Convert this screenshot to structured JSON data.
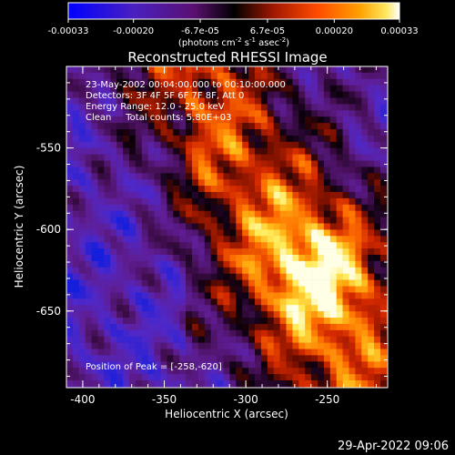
{
  "colorbar": {
    "ticks": [
      "-0.00033",
      "-0.00020",
      "-6.7e-05",
      "6.7e-05",
      "0.00020",
      "0.00033"
    ],
    "units_main": "(photons cm",
    "units_sup1": "-2",
    "units_mid1": " s",
    "units_sup2": "-1",
    "units_mid2": " asec",
    "units_sup3": "-2",
    "units_end": ")"
  },
  "chart_data": {
    "type": "heatmap",
    "title": "Reconstructed RHESSI Image",
    "xlabel": "Heliocentric X (arcsec)",
    "ylabel": "Heliocentric Y (arcsec)",
    "xlim": [
      -410,
      -213
    ],
    "ylim": [
      -697,
      -500
    ],
    "xticks": [
      "-400",
      "-350",
      "-300",
      "-250"
    ],
    "yticks": [
      "-550",
      "-600",
      "-650"
    ],
    "color_range": [
      -0.00033,
      0.00033
    ],
    "colormap": [
      "#0000ff",
      "#5a20a8",
      "#500050",
      "#000000",
      "#8c1400",
      "#ff4000",
      "#ff9a00",
      "#ffe040",
      "#ffffff"
    ],
    "annotations": [
      "23-May-2002 00:04:00.000 to 00:10:00.000",
      "Detectors: 3F 4F 5F 6F 7F 8F, Att 0",
      "Energy Range: 12.0 - 25.0 keV",
      "Clean     Total counts: 5.80E+03"
    ],
    "peak_label": "Position of Peak = [-258,-620]",
    "peak": {
      "x": -258,
      "y": -620
    }
  },
  "timestamp": "29-Apr-2022 09:06"
}
